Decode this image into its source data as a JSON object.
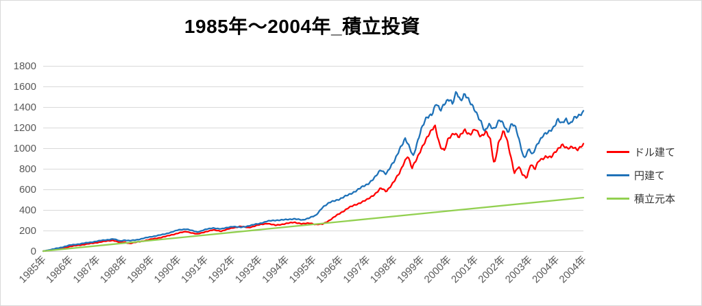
{
  "title": "1985年～2004年_積立投資",
  "chart_data": {
    "type": "line",
    "title": "1985年～2004年_積立投資",
    "xlabel": "",
    "ylabel": "",
    "x_axis": {
      "unit_suffix": "年",
      "labels": [
        "1985年",
        "1986年",
        "1987年",
        "1988年",
        "1989年",
        "1990年",
        "1991年",
        "1992年",
        "1993年",
        "1994年",
        "1995年",
        "1996年",
        "1997年",
        "1998年",
        "1999年",
        "2000年",
        "2001年",
        "2002年",
        "2003年",
        "2004年",
        "2004年"
      ],
      "label_rotation_deg": -45
    },
    "y_axis": {
      "min": 0,
      "max": 1800,
      "step": 200,
      "ticks": [
        0,
        200,
        400,
        600,
        800,
        1000,
        1200,
        1400,
        1600,
        1800
      ]
    },
    "grid": true,
    "legend_position": "right",
    "axis_color": "#bfbfbf",
    "grid_color": "#d9d9d9",
    "tick_label_color": "#595959",
    "series": [
      {
        "name": "ドル建て",
        "color": "#ff0000",
        "noisy": true,
        "points": [
          [
            0,
            0
          ],
          [
            0.3,
            10
          ],
          [
            0.6,
            25
          ],
          [
            1,
            45
          ],
          [
            1.4,
            60
          ],
          [
            1.8,
            75
          ],
          [
            2.2,
            92
          ],
          [
            2.6,
            105
          ],
          [
            2.85,
            82
          ],
          [
            3,
            88
          ],
          [
            3.2,
            75
          ],
          [
            3.5,
            88
          ],
          [
            4,
            115
          ],
          [
            4.5,
            140
          ],
          [
            5,
            175
          ],
          [
            5.3,
            190
          ],
          [
            5.7,
            165
          ],
          [
            6,
            188
          ],
          [
            6.3,
            205
          ],
          [
            6.6,
            195
          ],
          [
            7,
            225
          ],
          [
            7.3,
            240
          ],
          [
            7.6,
            228
          ],
          [
            8,
            255
          ],
          [
            8.3,
            270
          ],
          [
            8.6,
            250
          ],
          [
            9,
            268
          ],
          [
            9.3,
            280
          ],
          [
            9.6,
            265
          ],
          [
            9.9,
            272
          ],
          [
            10.1,
            258
          ],
          [
            10.35,
            262
          ],
          [
            10.6,
            300
          ],
          [
            11,
            370
          ],
          [
            11.3,
            420
          ],
          [
            11.6,
            455
          ],
          [
            12,
            500
          ],
          [
            12.3,
            560
          ],
          [
            12.5,
            610
          ],
          [
            12.7,
            580
          ],
          [
            13,
            680
          ],
          [
            13.2,
            760
          ],
          [
            13.35,
            860
          ],
          [
            13.5,
            930
          ],
          [
            13.65,
            800
          ],
          [
            13.8,
            880
          ],
          [
            14,
            1000
          ],
          [
            14.2,
            1090
          ],
          [
            14.5,
            1230
          ],
          [
            14.7,
            1010
          ],
          [
            14.85,
            970
          ],
          [
            15,
            1100
          ],
          [
            15.2,
            1150
          ],
          [
            15.4,
            1100
          ],
          [
            15.6,
            1185
          ],
          [
            15.8,
            1130
          ],
          [
            16,
            1180
          ],
          [
            16.2,
            1120
          ],
          [
            16.4,
            1160
          ],
          [
            16.55,
            1080
          ],
          [
            16.7,
            835
          ],
          [
            16.85,
            1050
          ],
          [
            17.05,
            1165
          ],
          [
            17.2,
            1050
          ],
          [
            17.45,
            760
          ],
          [
            17.6,
            820
          ],
          [
            17.75,
            740
          ],
          [
            17.9,
            715
          ],
          [
            18.05,
            850
          ],
          [
            18.2,
            790
          ],
          [
            18.35,
            880
          ],
          [
            18.6,
            920
          ],
          [
            18.8,
            905
          ],
          [
            19,
            980
          ],
          [
            19.2,
            1035
          ],
          [
            19.4,
            990
          ],
          [
            19.6,
            1020
          ],
          [
            19.8,
            985
          ],
          [
            20,
            1030
          ]
        ]
      },
      {
        "name": "円建て",
        "color": "#1f72b8",
        "noisy": true,
        "points": [
          [
            0,
            0
          ],
          [
            0.3,
            15
          ],
          [
            0.6,
            32
          ],
          [
            1,
            58
          ],
          [
            1.4,
            72
          ],
          [
            1.8,
            88
          ],
          [
            2.2,
            105
          ],
          [
            2.6,
            118
          ],
          [
            2.85,
            98
          ],
          [
            3,
            108
          ],
          [
            3.2,
            100
          ],
          [
            3.5,
            112
          ],
          [
            4,
            140
          ],
          [
            4.5,
            165
          ],
          [
            5,
            205
          ],
          [
            5.3,
            215
          ],
          [
            5.7,
            185
          ],
          [
            6,
            210
          ],
          [
            6.3,
            225
          ],
          [
            6.6,
            215
          ],
          [
            7,
            240
          ],
          [
            7.3,
            230
          ],
          [
            7.6,
            245
          ],
          [
            8,
            268
          ],
          [
            8.3,
            290
          ],
          [
            8.6,
            300
          ],
          [
            9,
            305
          ],
          [
            9.3,
            315
          ],
          [
            9.6,
            300
          ],
          [
            9.9,
            330
          ],
          [
            10.1,
            345
          ],
          [
            10.35,
            430
          ],
          [
            10.6,
            470
          ],
          [
            11,
            510
          ],
          [
            11.3,
            545
          ],
          [
            11.6,
            590
          ],
          [
            12,
            650
          ],
          [
            12.3,
            720
          ],
          [
            12.5,
            790
          ],
          [
            12.7,
            755
          ],
          [
            13,
            870
          ],
          [
            13.2,
            1000
          ],
          [
            13.4,
            1090
          ],
          [
            13.55,
            1010
          ],
          [
            13.7,
            925
          ],
          [
            13.85,
            1060
          ],
          [
            14,
            1180
          ],
          [
            14.2,
            1300
          ],
          [
            14.4,
            1340
          ],
          [
            14.55,
            1430
          ],
          [
            14.7,
            1360
          ],
          [
            14.9,
            1460
          ],
          [
            15.05,
            1480
          ],
          [
            15.15,
            1420
          ],
          [
            15.3,
            1545
          ],
          [
            15.45,
            1470
          ],
          [
            15.6,
            1530
          ],
          [
            15.8,
            1440
          ],
          [
            16,
            1370
          ],
          [
            16.2,
            1260
          ],
          [
            16.35,
            1150
          ],
          [
            16.5,
            1235
          ],
          [
            16.7,
            1190
          ],
          [
            16.9,
            1270
          ],
          [
            17.05,
            1230
          ],
          [
            17.2,
            1160
          ],
          [
            17.35,
            1240
          ],
          [
            17.5,
            1190
          ],
          [
            17.65,
            1050
          ],
          [
            17.8,
            905
          ],
          [
            18,
            990
          ],
          [
            18.1,
            925
          ],
          [
            18.3,
            1050
          ],
          [
            18.5,
            1120
          ],
          [
            18.7,
            1150
          ],
          [
            18.9,
            1210
          ],
          [
            19.05,
            1280
          ],
          [
            19.2,
            1230
          ],
          [
            19.35,
            1285
          ],
          [
            19.5,
            1240
          ],
          [
            19.65,
            1290
          ],
          [
            19.8,
            1300
          ],
          [
            20,
            1360
          ]
        ]
      },
      {
        "name": "積立元本",
        "color": "#92d050",
        "noisy": false,
        "points": [
          [
            0,
            0
          ],
          [
            20,
            520
          ]
        ]
      }
    ]
  }
}
